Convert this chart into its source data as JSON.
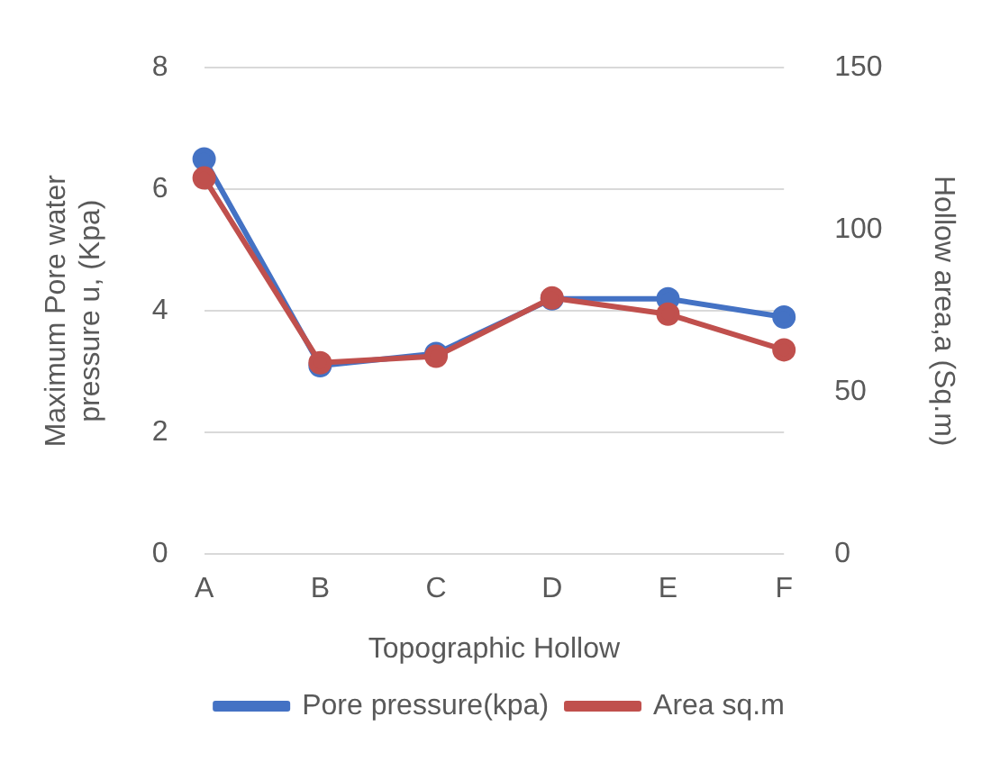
{
  "chart_data": {
    "type": "line",
    "xlabel": "Topographic Hollow",
    "ylabel": "Maximum Pore water\npressure u, (Kpa)",
    "y2label": "Hollow area,a (Sq.m)",
    "categories": [
      "A",
      "B",
      "C",
      "D",
      "E",
      "F"
    ],
    "series": [
      {
        "name": "Pore pressure(kpa)",
        "color": "#4472c4",
        "values": [
          6.5,
          3.1,
          3.3,
          4.2,
          4.2,
          3.9
        ]
      },
      {
        "name": "Area sq.m",
        "color": "#c0504d",
        "axis": "y2",
        "values": [
          116,
          59,
          61,
          79,
          74,
          63
        ]
      }
    ],
    "ylim": [
      0,
      8
    ],
    "yticks": [
      0,
      2,
      4,
      6,
      8
    ],
    "y2lim": [
      0,
      150
    ],
    "y2ticks": [
      0,
      50,
      100,
      150
    ],
    "grid": "y",
    "legend": "bottom",
    "marker": "circle",
    "line_style": "solid"
  }
}
